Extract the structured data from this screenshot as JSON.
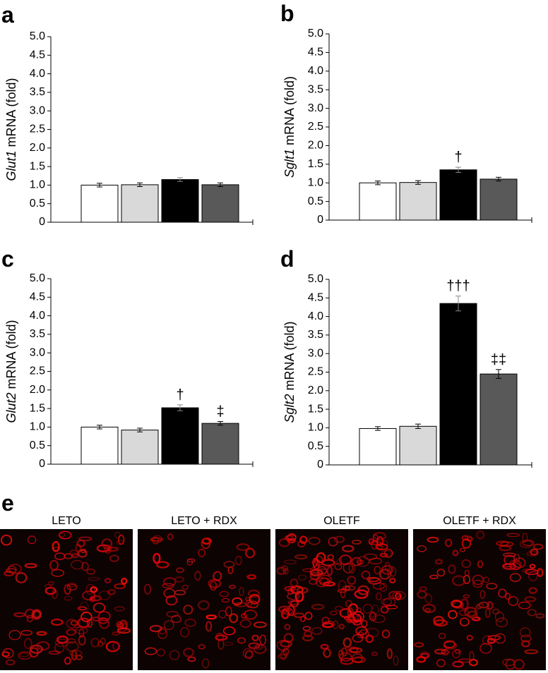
{
  "chart_data": [
    {
      "type": "bar",
      "panel": "a",
      "ylabel_gene": "Glut1",
      "ylabel": "mRNA (fold)",
      "categories": [
        null,
        null,
        null,
        null
      ],
      "values": [
        1.0,
        1.01,
        1.15,
        1.01
      ],
      "errors": [
        0.05,
        0.05,
        0.05,
        0.05
      ],
      "annotations": [
        null,
        null,
        null,
        null
      ],
      "colors": [
        "#ffffff",
        "#d9d9d9",
        "#000000",
        "#595959"
      ],
      "ylim": [
        0,
        5
      ],
      "yticks": [
        0,
        0.5,
        {
          "value": 1,
          "label": "1.0"
        },
        1.5,
        {
          "value": 2,
          "label": "2.0"
        },
        2.5,
        {
          "value": 3,
          "label": "3.0"
        },
        3.5,
        {
          "value": 4,
          "label": "4.0"
        },
        4.5,
        {
          "value": 5,
          "label": "5.0"
        }
      ]
    },
    {
      "type": "bar",
      "panel": "b",
      "ylabel_gene": "Sglt1",
      "ylabel": "mRNA (fold)",
      "categories": [
        null,
        null,
        null,
        null
      ],
      "values": [
        1.0,
        1.01,
        1.35,
        1.1
      ],
      "errors": [
        0.05,
        0.05,
        0.07,
        0.05
      ],
      "annotations": [
        null,
        null,
        "†",
        null
      ],
      "colors": [
        "#ffffff",
        "#d9d9d9",
        "#000000",
        "#595959"
      ],
      "ylim": [
        0,
        5
      ],
      "yticks": [
        0,
        0.5,
        {
          "value": 1,
          "label": "1.0"
        },
        1.5,
        {
          "value": 2,
          "label": "2.0"
        },
        2.5,
        {
          "value": 3,
          "label": "3.0"
        },
        3.5,
        {
          "value": 4,
          "label": "4.0"
        },
        4.5,
        {
          "value": 5,
          "label": "5.0"
        }
      ]
    },
    {
      "type": "bar",
      "panel": "c",
      "ylabel_gene": "Glut2",
      "ylabel": "mRNA (fold)",
      "categories": [
        null,
        null,
        null,
        null
      ],
      "values": [
        1.0,
        0.92,
        1.52,
        1.1
      ],
      "errors": [
        0.05,
        0.05,
        0.08,
        0.05
      ],
      "annotations": [
        null,
        null,
        "†",
        "‡"
      ],
      "colors": [
        "#ffffff",
        "#d9d9d9",
        "#000000",
        "#595959"
      ],
      "ylim": [
        0,
        5
      ],
      "yticks": [
        0,
        0.5,
        {
          "value": 1,
          "label": "1.0"
        },
        1.5,
        {
          "value": 2,
          "label": "2.0"
        },
        2.5,
        {
          "value": 3,
          "label": "3.0"
        },
        3.5,
        {
          "value": 4,
          "label": "4.0"
        },
        4.5,
        {
          "value": 5,
          "label": "5.0"
        }
      ]
    },
    {
      "type": "bar",
      "panel": "d",
      "ylabel_gene": "Sglt2",
      "ylabel": "mRNA (fold)",
      "categories": [
        null,
        null,
        null,
        null
      ],
      "values": [
        0.98,
        1.04,
        4.35,
        2.45
      ],
      "errors": [
        0.05,
        0.06,
        0.2,
        0.12
      ],
      "annotations": [
        null,
        null,
        "†††",
        "‡‡"
      ],
      "colors": [
        "#ffffff",
        "#d9d9d9",
        "#000000",
        "#595959"
      ],
      "ylim": [
        0,
        5
      ],
      "yticks": [
        0,
        0.5,
        {
          "value": 1,
          "label": "1.0"
        },
        1.5,
        {
          "value": 2,
          "label": "2.0"
        },
        2.5,
        {
          "value": 3,
          "label": "3.0"
        },
        3.5,
        {
          "value": 4,
          "label": "4.0"
        },
        4.5,
        {
          "value": 5,
          "label": "5.0"
        }
      ]
    }
  ],
  "micrographs": {
    "panel": "e",
    "labels": [
      "LETO",
      "LETO + RDX",
      "OLETF",
      "OLETF + RDX"
    ]
  }
}
